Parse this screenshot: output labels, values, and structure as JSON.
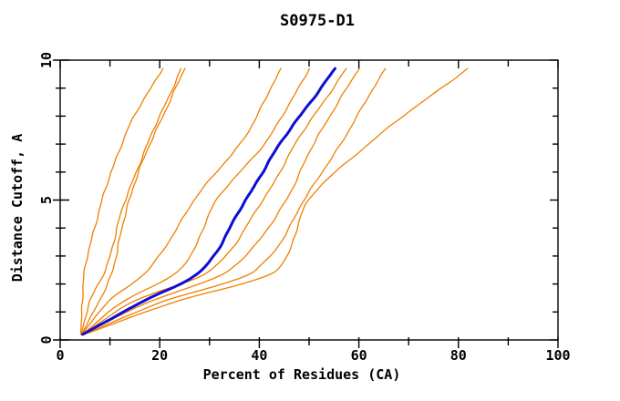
{
  "page": {
    "background_color": "#ffffff",
    "text_color": "#000000"
  },
  "chart_data": {
    "type": "line",
    "title": "S0975-D1",
    "xlabel": "Percent of Residues (CA)",
    "ylabel": "Distance Cutoff, A",
    "xlim": [
      0,
      100
    ],
    "ylim": [
      0,
      10
    ],
    "x_major_ticks": [
      0,
      20,
      40,
      60,
      80,
      100
    ],
    "x_major_tick_labels": [
      "0",
      "20",
      "40",
      "60",
      "80",
      "100"
    ],
    "x_minor_step": 10,
    "y_major_ticks": [
      0,
      5,
      10
    ],
    "y_major_tick_labels": [
      "0",
      "5",
      "10"
    ],
    "y_minor_step": 1,
    "grid": false,
    "legend": "none",
    "axes_color": "#000000",
    "highlight_color": "#0d0dd6",
    "model_color": "#ef7f00",
    "x_axis_meaning": "Percent of Residues (CA)",
    "y_axis_meaning": "Distance Cutoff, A",
    "cutoffs": [
      0.2,
      1.3,
      2.5,
      5.0,
      7.3,
      9.7
    ],
    "series": [
      {
        "name": "model-curve-1",
        "color": "#ef7f00",
        "width": 1.3,
        "percents": [
          4.1,
          4.4,
          5.0,
          8.5,
          13.0,
          20.5
        ]
      },
      {
        "name": "model-curve-2",
        "color": "#ef7f00",
        "width": 1.3,
        "percents": [
          4.2,
          5.9,
          9.0,
          13.1,
          18.3,
          24.3
        ]
      },
      {
        "name": "model-curve-3",
        "color": "#ef7f00",
        "width": 1.3,
        "percents": [
          4.3,
          7.6,
          10.5,
          13.8,
          18.8,
          25.1
        ]
      },
      {
        "name": "model-curve-4",
        "color": "#ef7f00",
        "width": 1.3,
        "percents": [
          4.4,
          9.2,
          17.7,
          26.9,
          37.2,
          44.4
        ]
      },
      {
        "name": "model-curve-5",
        "color": "#ef7f00",
        "width": 1.3,
        "percents": [
          4.5,
          12.0,
          24.0,
          31.5,
          42.2,
          50.0
        ]
      },
      {
        "name": "model-curve-6",
        "color": "#ef7f00",
        "width": 1.3,
        "percents": [
          4.6,
          14.0,
          30.2,
          40.7,
          48.3,
          57.5
        ]
      },
      {
        "name": "model-curve-7",
        "color": "#ef7f00",
        "width": 1.3,
        "percents": [
          4.7,
          17.0,
          34.0,
          45.3,
          51.8,
          60.1
        ]
      },
      {
        "name": "model-curve-8",
        "color": "#ef7f00",
        "width": 1.3,
        "percents": [
          4.8,
          19.5,
          39.4,
          49.0,
          57.3,
          65.3
        ]
      },
      {
        "name": "model-curve-9",
        "color": "#ef7f00",
        "width": 1.3,
        "percents": [
          4.9,
          22.0,
          43.5,
          50.0,
          64.0,
          81.8
        ]
      },
      {
        "name": "highlighted-model-curve",
        "color": "#0d0dd6",
        "width": 3.0,
        "percents": [
          4.5,
          15.9,
          28.4,
          37.2,
          45.3,
          55.3
        ]
      }
    ]
  }
}
